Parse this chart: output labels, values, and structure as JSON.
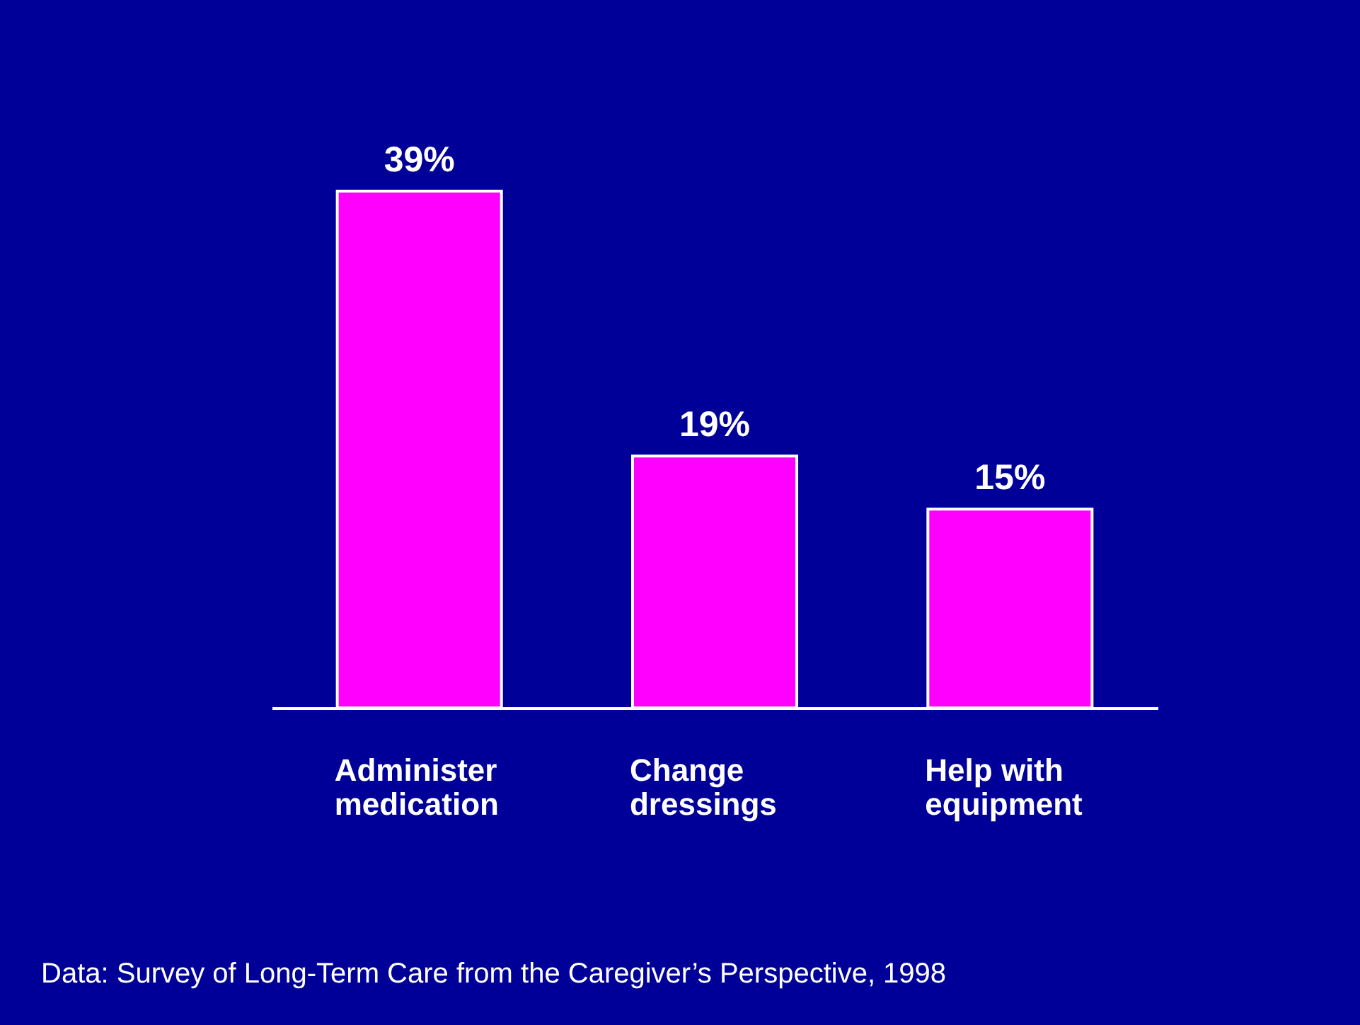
{
  "chart_data": {
    "type": "bar",
    "categories": [
      "Administer medication",
      "Change dressings",
      "Help with equipment"
    ],
    "values": [
      39,
      19,
      15
    ],
    "value_labels": [
      "39%",
      "19%",
      "15%"
    ],
    "color": "#ff00ff",
    "tick_labels": "x",
    "annotations": [
      "Data: Survey of Long-Term Care from the Caregiver’s Perspective, 1998"
    ]
  }
}
